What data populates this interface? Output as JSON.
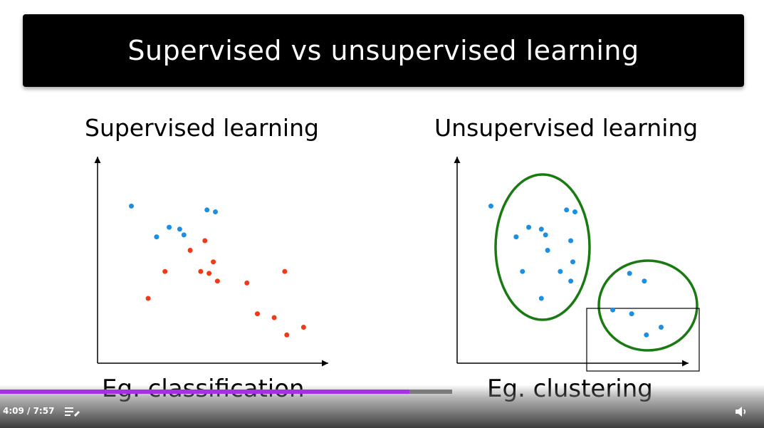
{
  "slide": {
    "title": "Supervised vs unsupervised learning",
    "left_panel_title": "Supervised learning",
    "right_panel_title": "Unsupervised learning",
    "left_caption": "Eg. classification",
    "right_caption": "Eg. clustering"
  },
  "chart_data": [
    {
      "type": "scatter",
      "title": "Supervised learning",
      "xlabel": "",
      "ylabel": "",
      "xlim": [
        0,
        100
      ],
      "ylim": [
        0,
        100
      ],
      "grid": false,
      "series": [
        {
          "color": "#1a8fe3",
          "points": [
            [
              10,
              78
            ],
            [
              28,
              67
            ],
            [
              22,
              62
            ],
            [
              33,
              66
            ],
            [
              35,
              63
            ],
            [
              46,
              76
            ],
            [
              50,
              75
            ]
          ]
        },
        {
          "color": "#f03a17",
          "points": [
            [
              45,
              60
            ],
            [
              38,
              55
            ],
            [
              47,
              43
            ],
            [
              49,
              49
            ],
            [
              43,
              44
            ],
            [
              26,
              44
            ],
            [
              18,
              30
            ],
            [
              51,
              39
            ],
            [
              65,
              38
            ],
            [
              70,
              22
            ],
            [
              78,
              20
            ],
            [
              83,
              44
            ],
            [
              92,
              15
            ],
            [
              84,
              11
            ]
          ]
        }
      ]
    },
    {
      "type": "scatter",
      "title": "Unsupervised learning",
      "xlabel": "",
      "ylabel": "",
      "xlim": [
        0,
        100
      ],
      "ylim": [
        0,
        100
      ],
      "grid": false,
      "series": [
        {
          "color": "#1a8fe3",
          "points": [
            [
              10,
              78
            ],
            [
              28,
              67
            ],
            [
              22,
              62
            ],
            [
              34,
              66
            ],
            [
              36,
              63
            ],
            [
              46,
              76
            ],
            [
              50,
              75
            ],
            [
              37,
              55
            ],
            [
              48,
              60
            ],
            [
              49,
              49
            ],
            [
              43,
              44
            ],
            [
              25,
              44
            ],
            [
              48,
              39
            ],
            [
              34,
              30
            ],
            [
              83,
              39
            ],
            [
              76,
              43
            ],
            [
              68,
              24
            ],
            [
              77,
              22
            ],
            [
              91,
              15
            ],
            [
              84,
              11
            ]
          ]
        }
      ],
      "clusters": 2
    }
  ],
  "player": {
    "time": "4:09 / 7:57",
    "progress": 0.905,
    "chapters_icon": "playlist-icon",
    "volume_icon": "volume-icon"
  },
  "colors": {
    "progress_fill": "#a431e8",
    "cluster_outline": "#1a7a12",
    "point_blue": "#1a8fe3",
    "point_red": "#f03a17"
  }
}
